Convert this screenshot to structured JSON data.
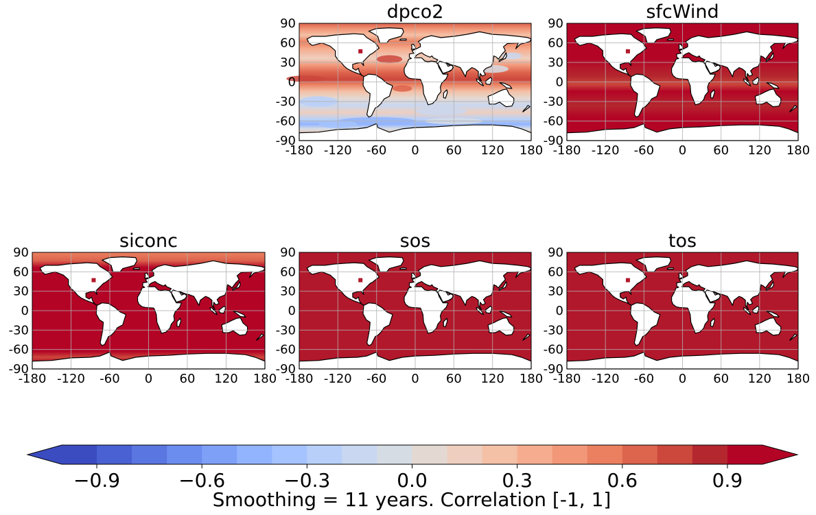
{
  "colors": {
    "land": "#ffffff",
    "coastline": "#000000",
    "grid": "#b0b0b0",
    "high_corr": "#b2182b"
  },
  "maps": [
    {
      "id": "dpco2",
      "title": "dpco2",
      "fill": "mixed"
    },
    {
      "id": "sfcwind",
      "title": "sfcWind",
      "fill": "mostly-high"
    },
    {
      "id": "siconc",
      "title": "siconc",
      "fill": "high-with-polar-low"
    },
    {
      "id": "sos",
      "title": "sos",
      "fill": "high"
    },
    {
      "id": "tos",
      "title": "tos",
      "fill": "high"
    }
  ],
  "axes": {
    "lon_ticks": [
      "-180",
      "-120",
      "-60",
      "0",
      "60",
      "120",
      "180"
    ],
    "lat_ticks": [
      "90",
      "60",
      "30",
      "0",
      "-30",
      "-60",
      "-90"
    ],
    "lon_range": [
      -180,
      180
    ],
    "lat_range": [
      -90,
      90
    ]
  },
  "colorbar": {
    "label": "Smoothing = 11 years. Correlation [-1, 1]",
    "ticks": [
      "−0.9",
      "−0.6",
      "−0.3",
      "0.0",
      "0.3",
      "0.6",
      "0.9"
    ],
    "tick_values": [
      -0.9,
      -0.6,
      -0.3,
      0.0,
      0.3,
      0.6,
      0.9
    ],
    "range": [
      -1,
      1
    ],
    "levels": [
      -1.0,
      -0.9,
      -0.8,
      -0.7,
      -0.6,
      -0.5,
      -0.4,
      -0.3,
      -0.2,
      -0.1,
      0.0,
      0.1,
      0.2,
      0.3,
      0.4,
      0.5,
      0.6,
      0.7,
      0.8,
      0.9,
      1.0
    ],
    "colors": [
      "#3b4cc0",
      "#4961d2",
      "#5a76e0",
      "#6b8df0",
      "#7ea0f7",
      "#92b4fe",
      "#a5c3fe",
      "#b8d0f9",
      "#c9d7f0",
      "#d6dce4",
      "#e4d9d2",
      "#eecfbf",
      "#f4c0a6",
      "#f6ad8f",
      "#f29778",
      "#ea8060",
      "#dd644d",
      "#cc473c",
      "#b4272e",
      "#b40426"
    ],
    "extend": "both"
  }
}
